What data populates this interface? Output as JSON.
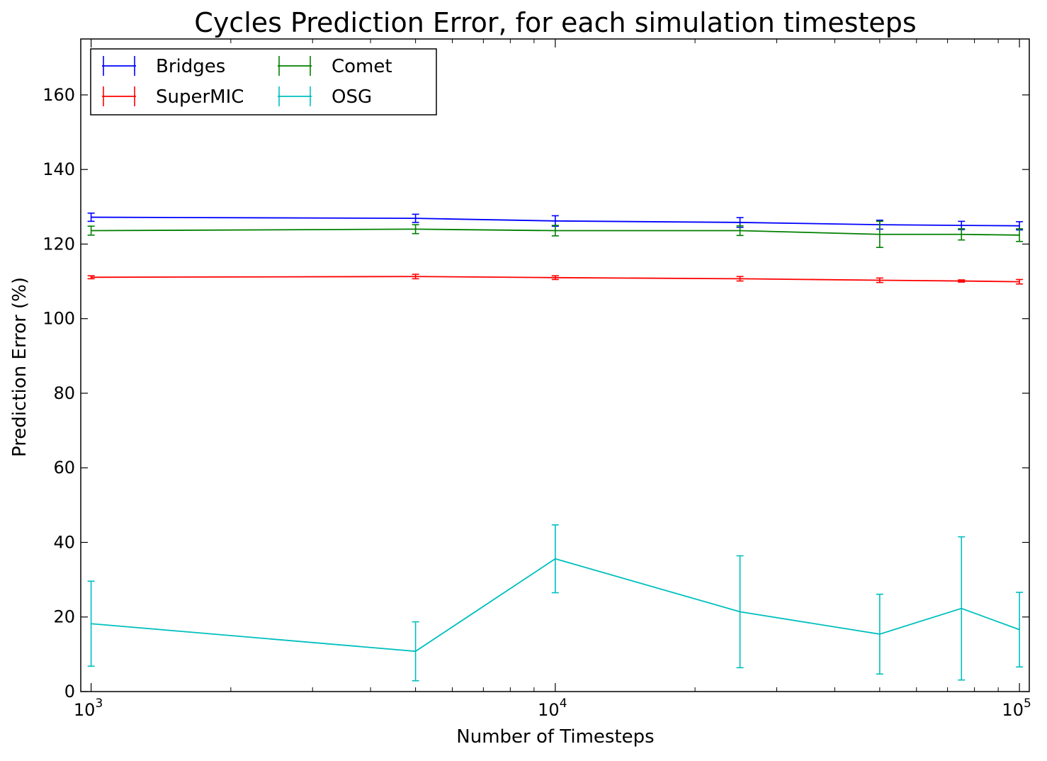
{
  "chart_data": {
    "type": "line",
    "title": "Cycles Prediction Error, for each simulation timesteps",
    "xlabel": "Number of Timesteps",
    "ylabel": "Prediction Error (%)",
    "x_scale": "log",
    "xlim": [
      950,
      105000
    ],
    "ylim": [
      0,
      175
    ],
    "x_ticks": [
      {
        "value": 1000,
        "base": "10",
        "exp": "3"
      },
      {
        "value": 10000,
        "base": "10",
        "exp": "4"
      },
      {
        "value": 100000,
        "base": "10",
        "exp": "5"
      }
    ],
    "y_ticks": [
      0,
      20,
      40,
      60,
      80,
      100,
      120,
      140,
      160
    ],
    "legend_position": "top-left",
    "legend_columns": 2,
    "grid": false,
    "x": [
      1000,
      5000,
      10000,
      25000,
      50000,
      75000,
      100000
    ],
    "series": [
      {
        "name": "Bridges",
        "color": "#0000ff",
        "values": [
          127.2,
          126.9,
          126.2,
          125.8,
          125.2,
          125.0,
          124.9
        ],
        "errors": [
          1.1,
          1.1,
          1.4,
          1.3,
          1.2,
          1.1,
          1.1
        ]
      },
      {
        "name": "Comet",
        "color": "#008000",
        "values": [
          123.6,
          124.0,
          123.6,
          123.6,
          122.6,
          122.6,
          122.4
        ],
        "errors": [
          1.2,
          1.2,
          1.4,
          1.3,
          3.5,
          1.5,
          1.7
        ]
      },
      {
        "name": "SuperMIC",
        "color": "#ff0000",
        "values": [
          111.1,
          111.3,
          111.0,
          110.7,
          110.3,
          110.1,
          109.9
        ],
        "errors": [
          0.4,
          0.6,
          0.5,
          0.6,
          0.6,
          0.3,
          0.6
        ]
      },
      {
        "name": "OSG",
        "color": "#00bfbf",
        "values": [
          18.2,
          10.8,
          35.6,
          21.4,
          15.4,
          22.3,
          16.6
        ],
        "errors": [
          11.4,
          7.9,
          9.1,
          15.0,
          10.7,
          19.2,
          10.0
        ]
      }
    ]
  }
}
